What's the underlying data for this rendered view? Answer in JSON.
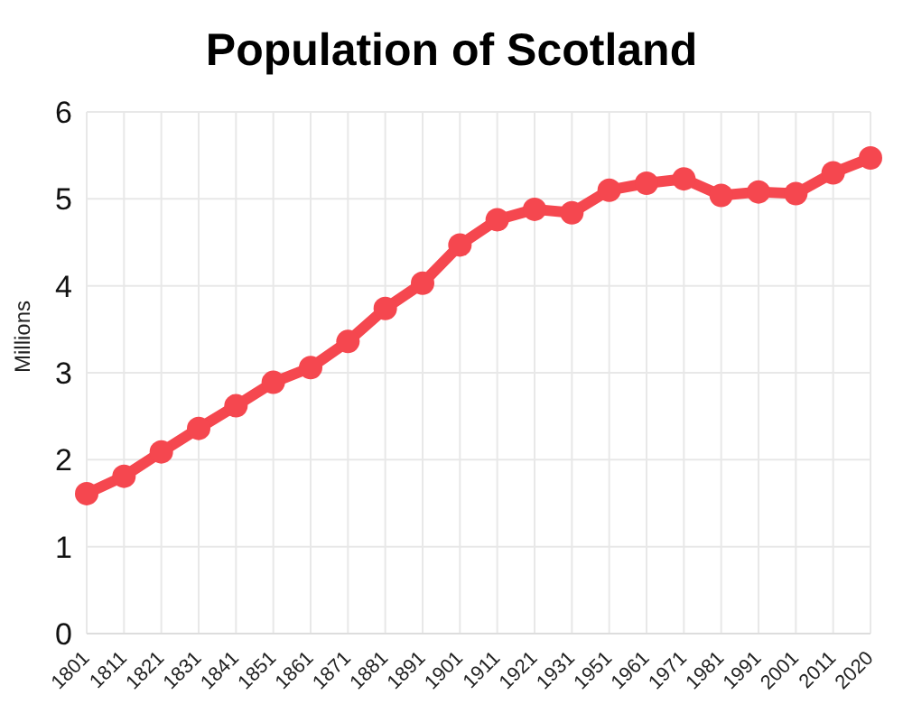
{
  "chart_data": {
    "type": "line",
    "title": "Population of Scotland",
    "ylabel": "Millions",
    "categories": [
      "1801",
      "1811",
      "1821",
      "1831",
      "1841",
      "1851",
      "1861",
      "1871",
      "1881",
      "1891",
      "1901",
      "1911",
      "1921",
      "1931",
      "1951",
      "1961",
      "1971",
      "1981",
      "1991",
      "2001",
      "2011",
      "2020"
    ],
    "series": [
      {
        "color": "#f5474f",
        "values": [
          1.61,
          1.81,
          2.09,
          2.36,
          2.62,
          2.89,
          3.06,
          3.36,
          3.74,
          4.03,
          4.47,
          4.76,
          4.88,
          4.84,
          5.1,
          5.18,
          5.23,
          5.04,
          5.08,
          5.06,
          5.3,
          5.47
        ]
      }
    ],
    "ylim": [
      0,
      6
    ],
    "yticks": [
      0,
      1,
      2,
      3,
      4,
      5,
      6
    ],
    "grid": true,
    "marker": "circle",
    "line_style": "solid",
    "legend": false
  }
}
